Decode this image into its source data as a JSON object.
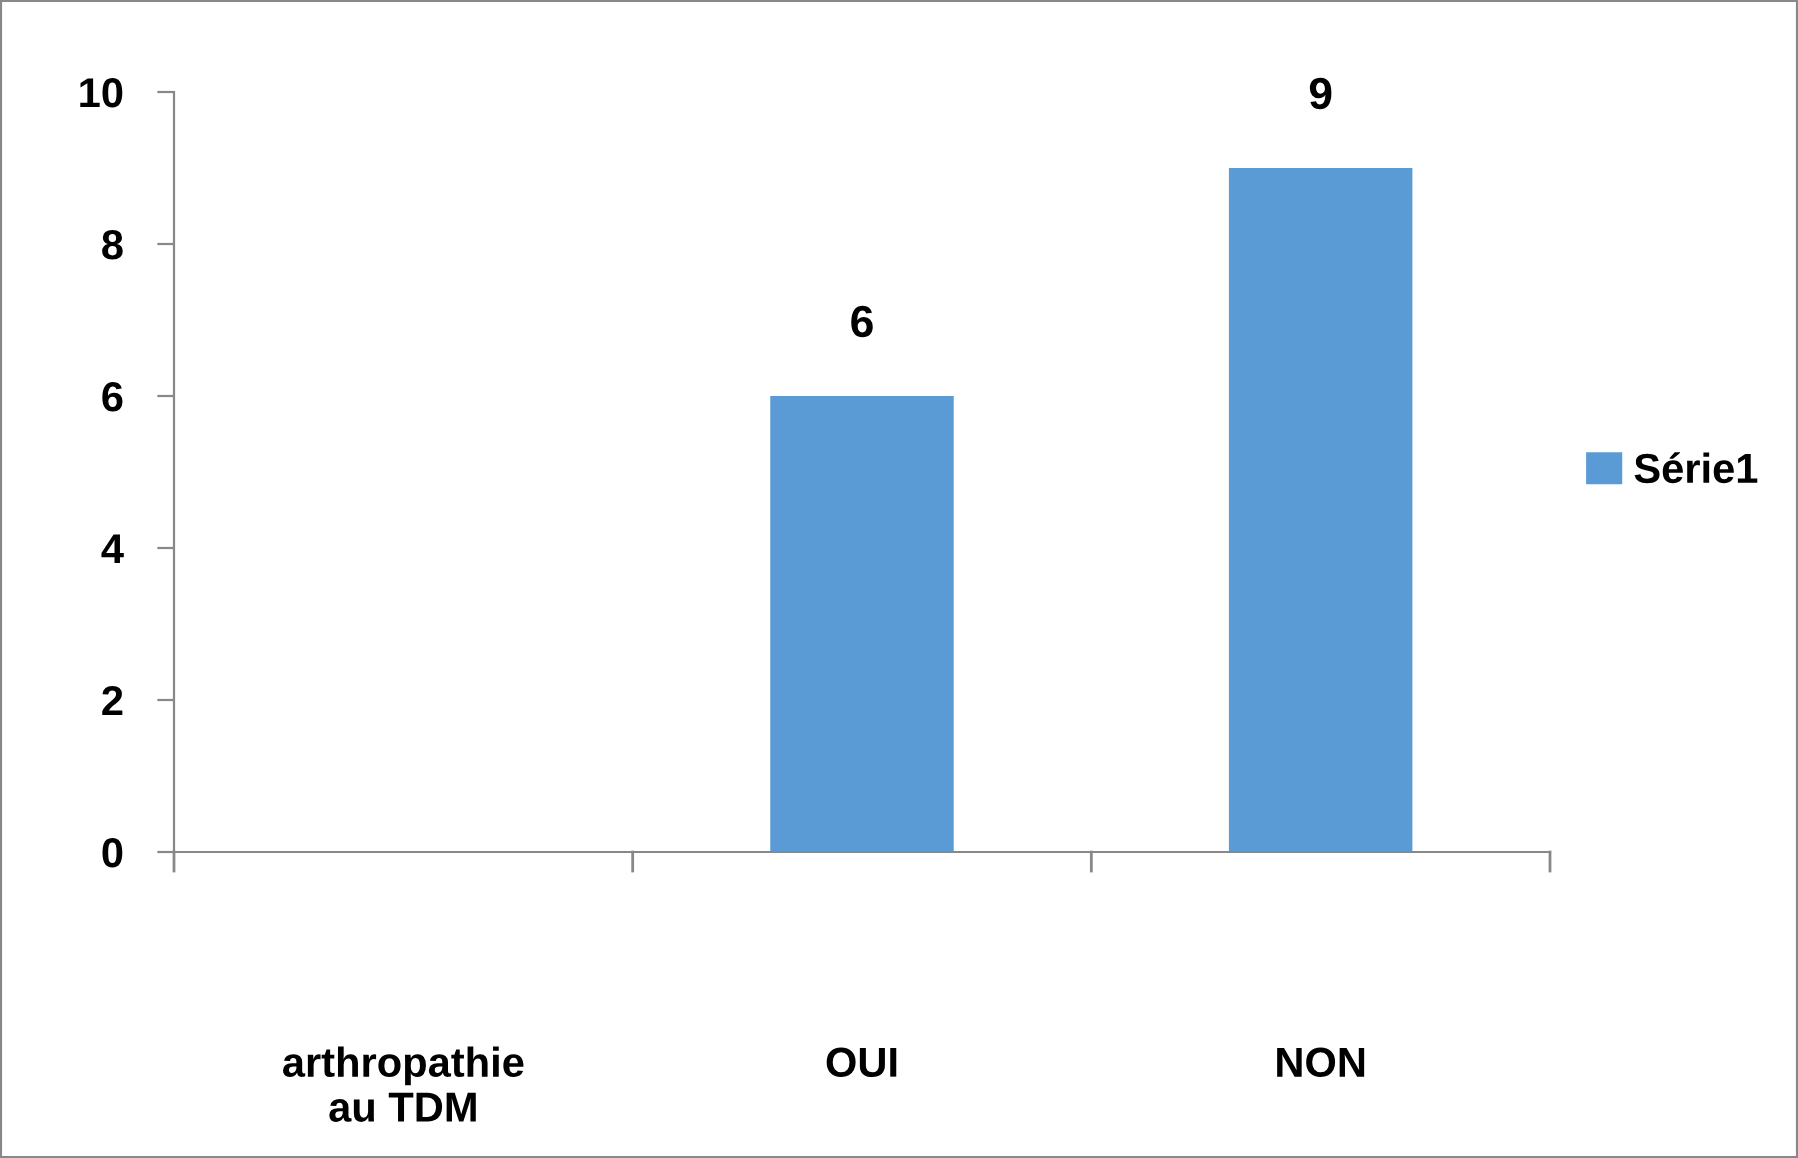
{
  "chart_data": {
    "type": "bar",
    "categories": [
      "arthropathie\nau TDM",
      "OUI",
      "NON"
    ],
    "series": [
      {
        "name": "Série1",
        "color": "#5b9bd5",
        "values": [
          null,
          6,
          9
        ]
      }
    ],
    "ylim": [
      0,
      10
    ],
    "yticks": [
      0,
      2,
      4,
      6,
      8,
      10
    ],
    "data_labels": true,
    "legend": "right",
    "grid": false
  }
}
